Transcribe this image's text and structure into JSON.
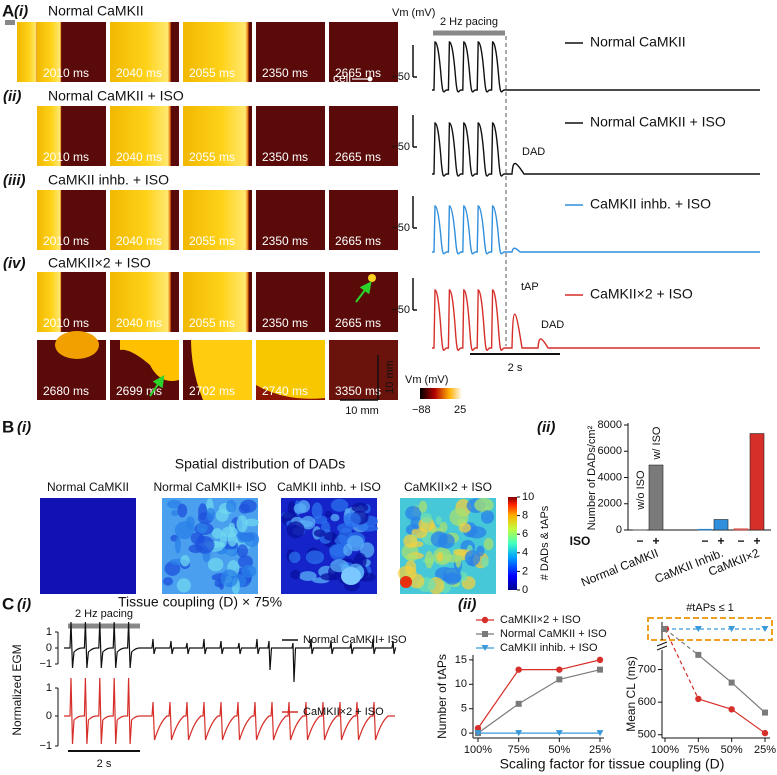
{
  "panel_a": {
    "label": "A",
    "rows": [
      {
        "label": "(i)",
        "title": "Normal CaMKII",
        "times": [
          "2010 ms",
          "2040 ms",
          "2055 ms",
          "2350 ms",
          "2665 ms"
        ],
        "trace_label": "Normal CaMKII",
        "tick": "−50",
        "color": "#111111"
      },
      {
        "label": "(ii)",
        "title": "Normal CaMKII + ISO",
        "times": [
          "2010 ms",
          "2040 ms",
          "2055 ms",
          "2350 ms",
          "2665 ms"
        ],
        "trace_label": "Normal CaMKII + ISO",
        "tick": "−50",
        "color": "#111111",
        "annotations": [
          "DAD"
        ]
      },
      {
        "label": "(iii)",
        "title": "CaMKII inhb. + ISO",
        "times": [
          "2010 ms",
          "2040 ms",
          "2055 ms",
          "2350 ms",
          "2665 ms"
        ],
        "trace_label": "CaMKII inhb. + ISO",
        "tick": "−50",
        "color": "#2f8fdc"
      },
      {
        "label": "(iv)",
        "title": "CaMKII×2 + ISO",
        "times": [
          "2010 ms",
          "2040 ms",
          "2055 ms",
          "2350 ms",
          "2665 ms"
        ],
        "trace_label": "CaMKII×2 + ISO",
        "tick": "−50",
        "color": "#d62f2a",
        "annotations": [
          "tAP",
          "DAD"
        ]
      }
    ],
    "extra_times": [
      "2680 ms",
      "2699 ms",
      "2702 ms",
      "2740 ms",
      "3350 ms"
    ],
    "cell_label": "cell",
    "vm_label": "Vm (mV)",
    "pacing": "2 Hz pacing",
    "time_scale": "2 s",
    "length_scale": [
      "10 mm",
      "10 mm"
    ],
    "colorbar": {
      "label": "Vm (mV)",
      "min": "−88",
      "max": "25"
    }
  },
  "panel_b": {
    "label": "B",
    "sub_i": "(i)",
    "sub_ii": "(ii)",
    "title": "Spatial distribution of DADs",
    "maps": [
      "Normal CaMKII",
      "Normal CaMKII+ ISO",
      "CaMKII inhb. + ISO",
      "CaMKII×2 + ISO"
    ],
    "colorbar": {
      "label": "# DADs & tAPs",
      "range": [
        0,
        10
      ],
      "ticks": [
        0,
        2,
        4,
        6,
        8,
        10
      ]
    }
  },
  "panel_c": {
    "label": "C",
    "sub_i": "(i)",
    "sub_ii": "(ii)",
    "title": "Tissue coupling (D) × 75%",
    "ylabel": "Normalized EGM",
    "pacing": "2 Hz pacing",
    "time_scale": "2 s",
    "traces": [
      {
        "label": "Normal CaMKII+ ISO",
        "color": "#111111",
        "ticks": [
          "1",
          "0",
          "−1"
        ]
      },
      {
        "label": "CaMKII×2 + ISO",
        "color": "#d62f2a",
        "ticks": [
          "1",
          "0",
          "−1"
        ]
      }
    ]
  },
  "chart_data": [
    {
      "type": "bar",
      "ylabel": "Number of DADs/cm²",
      "categories": [
        "Normal CaMKII",
        "CaMKII Inhib.",
        "CaMKII×2"
      ],
      "colors": [
        "#7a7a7a",
        "#2f8fdc",
        "#d62f2a"
      ],
      "series": [
        {
          "name": "−",
          "values": [
            30,
            60,
            90
          ]
        },
        {
          "name": "+",
          "values": [
            4950,
            800,
            7350
          ]
        }
      ],
      "row_label": "ISO",
      "annotations": [
        "w/o ISO",
        "w/ ISO"
      ],
      "ylim": [
        0,
        8000
      ],
      "yticks": [
        0,
        2000,
        4000,
        6000,
        8000
      ]
    },
    {
      "type": "line",
      "ylabel": "Number of tAPs",
      "xlabel": "Scaling factor for tissue coupling (D)",
      "categories": [
        "100%",
        "75%",
        "50%",
        "25%"
      ],
      "series": [
        {
          "name": "CaMKII×2 + ISO",
          "color": "#d62f2a",
          "marker": "circle",
          "values": [
            1,
            13,
            13,
            15
          ]
        },
        {
          "name": "Normal CaMKII + ISO",
          "color": "#7a7a7a",
          "marker": "square",
          "values": [
            0,
            6,
            11,
            13
          ]
        },
        {
          "name": "CaMKII inhib. + ISO",
          "color": "#3a9ad9",
          "marker": "triangle",
          "values": [
            0,
            0,
            0,
            0
          ]
        }
      ],
      "ylim": [
        -1,
        16
      ],
      "yticks": [
        0,
        5,
        10,
        15
      ]
    },
    {
      "type": "line",
      "ylabel": "Mean CL (ms)",
      "band_label": "#tAPs ≤ 1",
      "categories": [
        "100%",
        "75%",
        "50%",
        "25%"
      ],
      "series": [
        {
          "color": "#d62f2a",
          "marker": "circle",
          "values": [
            null,
            610,
            578,
            505
          ]
        },
        {
          "color": "#7a7a7a",
          "marker": "square",
          "values": [
            null,
            745,
            660,
            568
          ]
        }
      ],
      "ylim": [
        490,
        760
      ],
      "yticks": [
        500,
        600,
        700
      ]
    }
  ]
}
